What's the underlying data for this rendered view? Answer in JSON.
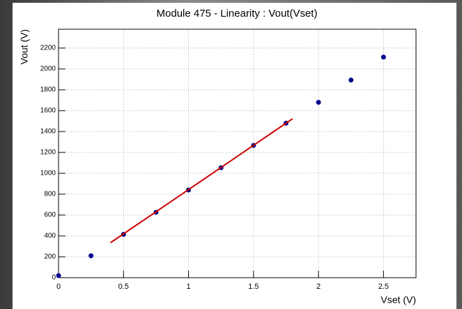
{
  "chart_data": {
    "type": "scatter",
    "title": "Module 475 - Linearity : Vout(Vset)",
    "x_label": "Vset (V)",
    "y_label": "Vout (V)",
    "xlim": [
      0,
      2.75
    ],
    "xticks": [
      0,
      0.5,
      1,
      1.5,
      2,
      2.5
    ],
    "ylim": [
      0,
      2380
    ],
    "yticks": [
      0,
      200,
      400,
      600,
      800,
      1000,
      1200,
      1400,
      1600,
      1800,
      2000,
      2200
    ],
    "grid": true,
    "series": [
      {
        "type": "scatter",
        "color": "#00008b",
        "x": [
          0,
          0.25,
          0.5,
          0.75,
          1,
          1.25,
          1.5,
          1.75,
          2,
          2.25,
          2.5
        ],
        "values": [
          20,
          210,
          415,
          627,
          840,
          1053,
          1267,
          1480,
          1680,
          1893,
          2113
        ]
      },
      {
        "type": "line",
        "color": "#cc0000",
        "x": [
          0.4,
          1.8
        ],
        "values": [
          335,
          1522
        ]
      }
    ]
  }
}
